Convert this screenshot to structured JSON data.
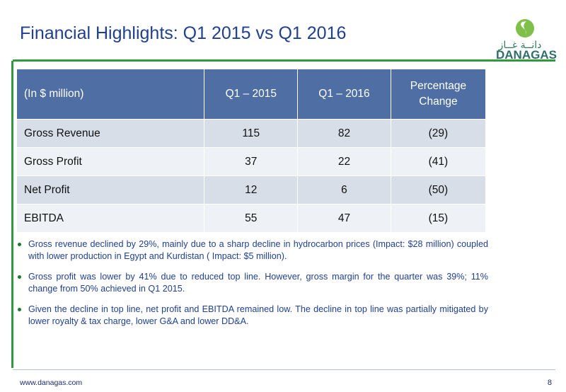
{
  "header": {
    "title": "Financial Highlights: Q1 2015 vs Q1 2016",
    "logo": {
      "arabic": "دانــة غــاز",
      "name": "DANAGAS"
    }
  },
  "table": {
    "headers": [
      "(In $ million)",
      "Q1 – 2015",
      "Q1 – 2016",
      "Percentage Change"
    ],
    "rows": [
      [
        "Gross Revenue",
        "115",
        "82",
        "(29)"
      ],
      [
        "Gross Profit",
        "37",
        "22",
        "(41)"
      ],
      [
        "Net Profit",
        "12",
        "6",
        "(50)"
      ],
      [
        "EBITDA",
        "55",
        "47",
        "(15)"
      ]
    ]
  },
  "notes": [
    "Gross revenue declined by 29%, mainly due to a sharp decline in hydrocarbon prices (Impact: $28 million) coupled with lower production in Egypt and Kurdistan ( Impact: $5 million).",
    "Gross profit was lower by 41% due to reduced top line. However, gross margin for the quarter was 39%; 11% change from 50% achieved in Q1 2015.",
    "Given the decline in top line, net profit and EBITDA remained low. The decline in top line was partially mitigated by lower royalty & tax charge, lower G&A and lower DD&A."
  ],
  "footer": {
    "website": "www.danagas.com",
    "page_number": "8"
  },
  "colors": {
    "title": "#1f3f8f",
    "header_bg": "#4f6fa4",
    "row_dark": "#d8dee8",
    "row_light": "#eef1f5",
    "accent_green": "#2f9a3e"
  }
}
